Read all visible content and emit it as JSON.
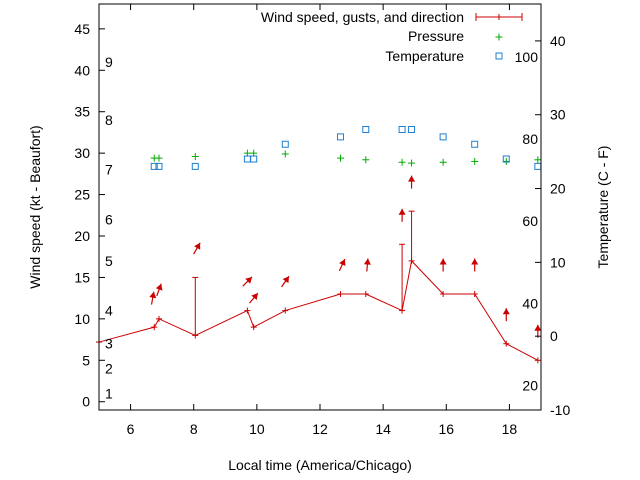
{
  "chart_data": {
    "type": "line",
    "xlabel": "Local time (America/Chicago)",
    "ylabel": "Wind speed (kt - Beaufort)",
    "y2label": "Temperature (C - F)",
    "xlim": [
      5,
      19
    ],
    "ylim": [
      -1,
      48
    ],
    "y2lim": [
      -10,
      45
    ],
    "x_ticks": [
      6,
      8,
      10,
      12,
      14,
      16,
      18
    ],
    "y_ticks": [
      0,
      5,
      10,
      15,
      20,
      25,
      30,
      35,
      40,
      45
    ],
    "y2_ticks": [
      -10,
      0,
      10,
      20,
      30,
      40
    ],
    "beaufort_labels": [
      {
        "label": "1",
        "kt": 1
      },
      {
        "label": "2",
        "kt": 4
      },
      {
        "label": "3",
        "kt": 7
      },
      {
        "label": "4",
        "kt": 11
      },
      {
        "label": "5",
        "kt": 17
      },
      {
        "label": "6",
        "kt": 22
      },
      {
        "label": "7",
        "kt": 28
      },
      {
        "label": "8",
        "kt": 34
      },
      {
        "label": "9",
        "kt": 41
      }
    ],
    "fahrenheit_labels": [
      {
        "label": "20",
        "c": -6.7
      },
      {
        "label": "40",
        "c": 4.4
      },
      {
        "label": "60",
        "c": 15.6
      },
      {
        "label": "80",
        "c": 26.7
      },
      {
        "label": "100",
        "c": 37.8
      }
    ],
    "legend": [
      "Wind speed, gusts, and direction",
      "Pressure",
      "Temperature"
    ],
    "legend_position": "top-right",
    "series": [
      {
        "name": "Wind speed, gusts, and direction",
        "color": "#cc0000",
        "x": [
          5,
          6.75,
          6.9,
          8.05,
          9.7,
          9.9,
          10.9,
          12.65,
          13.45,
          14.6,
          14.9,
          15.9,
          16.9,
          17.9,
          18.9
        ],
        "y": [
          7.2,
          9,
          10,
          8,
          11,
          9,
          11,
          13,
          13,
          11,
          17,
          13,
          13,
          7,
          5
        ],
        "gusts": [
          {
            "x": 8.05,
            "gust": 15
          },
          {
            "x": 14.6,
            "gust": 19
          },
          {
            "x": 14.9,
            "gust": 23
          }
        ],
        "direction_arrows": [
          {
            "x": 6.7,
            "kt": 12.5,
            "toward_deg": 10
          },
          {
            "x": 6.9,
            "kt": 13.5,
            "toward_deg": 20
          },
          {
            "x": 8.1,
            "kt": 18.5,
            "toward_deg": 30
          },
          {
            "x": 9.7,
            "kt": 14.5,
            "toward_deg": 45
          },
          {
            "x": 9.9,
            "kt": 12.5,
            "toward_deg": 40
          },
          {
            "x": 10.9,
            "kt": 14.5,
            "toward_deg": 35
          },
          {
            "x": 12.7,
            "kt": 16.5,
            "toward_deg": 25
          },
          {
            "x": 13.5,
            "kt": 16.5,
            "toward_deg": 5
          },
          {
            "x": 14.6,
            "kt": 22.5,
            "toward_deg": 0
          },
          {
            "x": 14.9,
            "kt": 26.5,
            "toward_deg": 0
          },
          {
            "x": 15.9,
            "kt": 16.5,
            "toward_deg": 0
          },
          {
            "x": 16.9,
            "kt": 16.5,
            "toward_deg": 0
          },
          {
            "x": 17.9,
            "kt": 10.5,
            "toward_deg": 0
          },
          {
            "x": 18.9,
            "kt": 8.5,
            "toward_deg": 0
          }
        ]
      },
      {
        "name": "Pressure",
        "color": "#00aa00",
        "marker": "+",
        "x": [
          6.75,
          6.9,
          8.05,
          9.7,
          9.9,
          10.9,
          12.65,
          13.45,
          14.6,
          14.9,
          15.9,
          16.9,
          17.9,
          18.9
        ],
        "y": [
          29.4,
          29.4,
          29.6,
          30.0,
          30.0,
          29.9,
          29.4,
          29.2,
          28.9,
          28.8,
          28.9,
          29.0,
          29.0,
          29.2
        ]
      },
      {
        "name": "Temperature",
        "color": "#1e7fd0",
        "marker": "square",
        "axis": "y2",
        "x": [
          6.75,
          6.9,
          8.05,
          9.7,
          9.9,
          10.9,
          12.65,
          13.45,
          14.6,
          14.9,
          15.9,
          16.9,
          17.9,
          18.9
        ],
        "y": [
          23.0,
          23.0,
          23.0,
          24.0,
          24.0,
          26.0,
          27.0,
          28.0,
          28.0,
          28.0,
          27.0,
          26.0,
          24.0,
          23.0
        ]
      }
    ]
  }
}
